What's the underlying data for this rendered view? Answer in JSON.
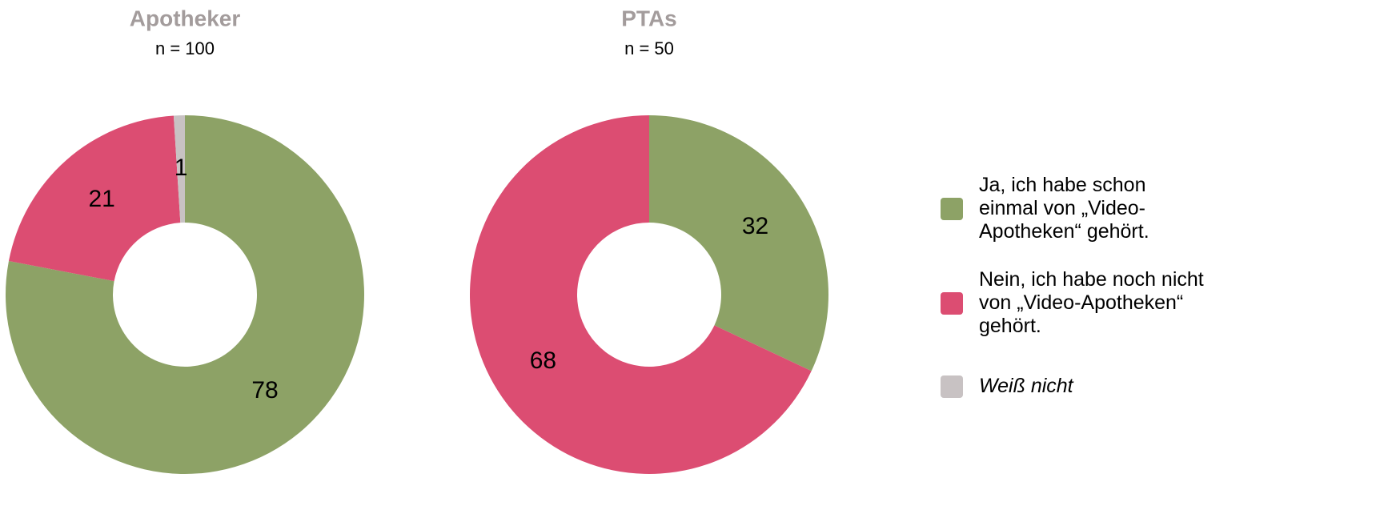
{
  "chart_data": [
    {
      "type": "donut",
      "title": "Apotheker",
      "subtitle": "n = 100",
      "values": [
        78,
        21,
        1
      ],
      "colors": [
        "#8da266",
        "#dc4d72",
        "#c8c2c3"
      ]
    },
    {
      "type": "donut",
      "title": "PTAs",
      "subtitle": "n = 50",
      "values": [
        32,
        68
      ],
      "colors": [
        "#8da266",
        "#dc4d72"
      ]
    }
  ],
  "legend": {
    "items": [
      "Ja, ich habe schon\neinmal von „Video-\nApotheken“ gehört.",
      "Nein, ich habe noch nicht\nvon „Video-Apotheken“\ngehört.",
      "Weiß nicht"
    ],
    "colors": [
      "#8da266",
      "#dc4d72",
      "#c8c2c3"
    ],
    "italic": [
      false,
      false,
      true
    ]
  }
}
